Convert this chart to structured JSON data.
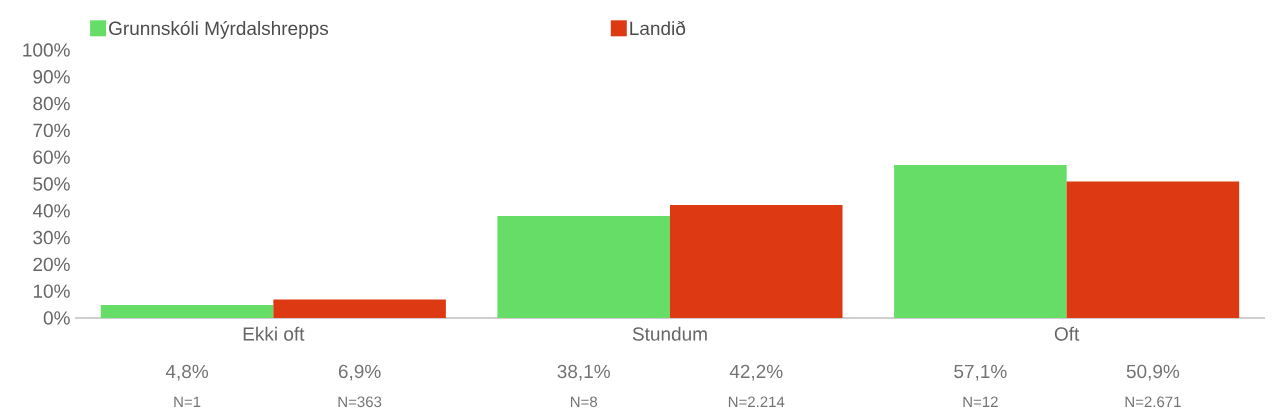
{
  "chart_data": {
    "type": "bar",
    "categories": [
      "Ekki oft",
      "Stundum",
      "Oft"
    ],
    "series": [
      {
        "name": "Grunnskóli Mýrdalshrepps",
        "color": "#66dd66",
        "values": [
          4.8,
          38.1,
          57.1
        ],
        "value_labels": [
          "4,8%",
          "38,1%",
          "57,1%"
        ]
      },
      {
        "name": "Landið",
        "color": "#dd3a14",
        "values": [
          6.9,
          42.2,
          50.9
        ],
        "value_labels": [
          "6,9%",
          "42,2%",
          "50,9%"
        ]
      }
    ],
    "annotations": [
      "N=1",
      "N=363",
      "N=8",
      "N=2.214",
      "N=12",
      "N=2.671"
    ],
    "ylim": [
      0,
      100
    ],
    "yticks": [
      {
        "value": 0,
        "label": "0%"
      },
      {
        "value": 10,
        "label": "10%"
      },
      {
        "value": 20,
        "label": "20%"
      },
      {
        "value": 30,
        "label": "30%"
      },
      {
        "value": 40,
        "label": "40%"
      },
      {
        "value": 50,
        "label": "50%"
      },
      {
        "value": 60,
        "label": "60%"
      },
      {
        "value": 70,
        "label": "70%"
      },
      {
        "value": 80,
        "label": "80%"
      },
      {
        "value": 90,
        "label": "90%"
      },
      {
        "value": 100,
        "label": "100%"
      }
    ],
    "grid": false,
    "legend": "top left"
  }
}
